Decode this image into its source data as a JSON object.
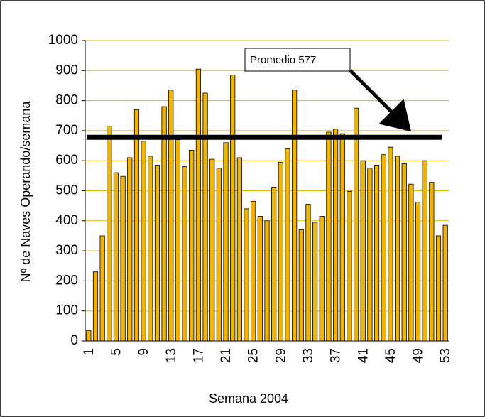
{
  "chart_data": {
    "type": "bar",
    "x_label": "Semana 2004",
    "y_label": "Nº de Naves Operando/semana",
    "annotation": "Promedio 577",
    "reference_line": 678,
    "categories": [
      "1",
      null,
      null,
      null,
      "5",
      null,
      null,
      null,
      "9",
      null,
      null,
      null,
      "13",
      null,
      null,
      null,
      "17",
      null,
      null,
      null,
      "21",
      null,
      null,
      null,
      "25",
      null,
      null,
      null,
      "29",
      null,
      null,
      null,
      "33",
      null,
      null,
      null,
      "37",
      null,
      null,
      null,
      "41",
      null,
      null,
      null,
      "45",
      null,
      null,
      null,
      "49",
      null,
      null,
      null,
      "53"
    ],
    "values": [
      35,
      230,
      350,
      715,
      560,
      548,
      610,
      770,
      665,
      615,
      585,
      780,
      835,
      670,
      580,
      635,
      905,
      825,
      605,
      575,
      660,
      885,
      610,
      440,
      465,
      415,
      400,
      512,
      595,
      640,
      835,
      370,
      455,
      395,
      415,
      695,
      705,
      690,
      498,
      775,
      600,
      575,
      585,
      620,
      645,
      615,
      590,
      522,
      462,
      600,
      528,
      350,
      385
    ],
    "color": "#f0b400",
    "grid": true,
    "grid_color": "#e8b800",
    "ylim": [
      0,
      1000
    ],
    "yticks": [
      0,
      100,
      200,
      300,
      400,
      500,
      600,
      700,
      800,
      900,
      1000
    ]
  }
}
